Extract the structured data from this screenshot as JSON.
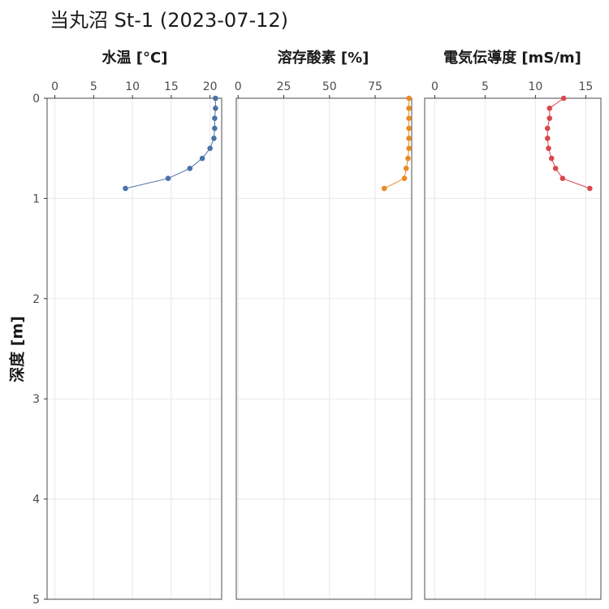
{
  "title": "当丸沼 St-1 (2023-07-12)",
  "chart_data": [
    {
      "type": "line",
      "title": "水温 [°C]",
      "xlabel": "水温 [°C]",
      "ylabel": "深度 [m]",
      "xlim": [
        -1,
        21.5
      ],
      "xticks": [
        0,
        5,
        10,
        15,
        20
      ],
      "ylim": [
        0,
        5
      ],
      "yticks": [
        0,
        1,
        2,
        3,
        4,
        5
      ],
      "y_reversed": true,
      "grid": true,
      "x_axis_position": "top",
      "color": "#4a72a8",
      "series": [
        {
          "x": [
            20.7,
            20.7,
            20.6,
            20.6,
            20.5,
            20.0,
            19.0,
            17.4,
            14.6,
            9.1
          ],
          "y": [
            0,
            0.1,
            0.2,
            0.3,
            0.4,
            0.5,
            0.6,
            0.7,
            0.8,
            0.9
          ]
        }
      ]
    },
    {
      "type": "line",
      "title": "溶存酸素 [%]",
      "xlabel": "溶存酸素 [%]",
      "ylabel": "深度 [m]",
      "xlim": [
        -1,
        95
      ],
      "xticks": [
        0,
        25,
        50,
        75
      ],
      "ylim": [
        0,
        5
      ],
      "y_reversed": true,
      "grid": true,
      "x_axis_position": "top",
      "color": "#e98a24",
      "series": [
        {
          "x": [
            93.5,
            93.5,
            93.5,
            93.5,
            93.5,
            93.5,
            93.0,
            92.0,
            91.0,
            80.0
          ],
          "y": [
            0,
            0.1,
            0.2,
            0.3,
            0.4,
            0.5,
            0.6,
            0.7,
            0.8,
            0.9
          ]
        }
      ]
    },
    {
      "type": "line",
      "title": "電気伝導度 [mS/m]",
      "xlabel": "電気伝導度 [mS/m]",
      "ylabel": "深度 [m]",
      "xlim": [
        -1,
        16.5
      ],
      "xticks": [
        0,
        5,
        10,
        15
      ],
      "ylim": [
        0,
        5
      ],
      "y_reversed": true,
      "grid": true,
      "x_axis_position": "top",
      "color": "#d9484d",
      "series": [
        {
          "x": [
            12.8,
            11.4,
            11.4,
            11.2,
            11.2,
            11.3,
            11.6,
            12.0,
            12.7,
            15.4
          ],
          "y": [
            0,
            0.1,
            0.2,
            0.3,
            0.4,
            0.5,
            0.6,
            0.7,
            0.8,
            0.9
          ]
        }
      ]
    }
  ]
}
